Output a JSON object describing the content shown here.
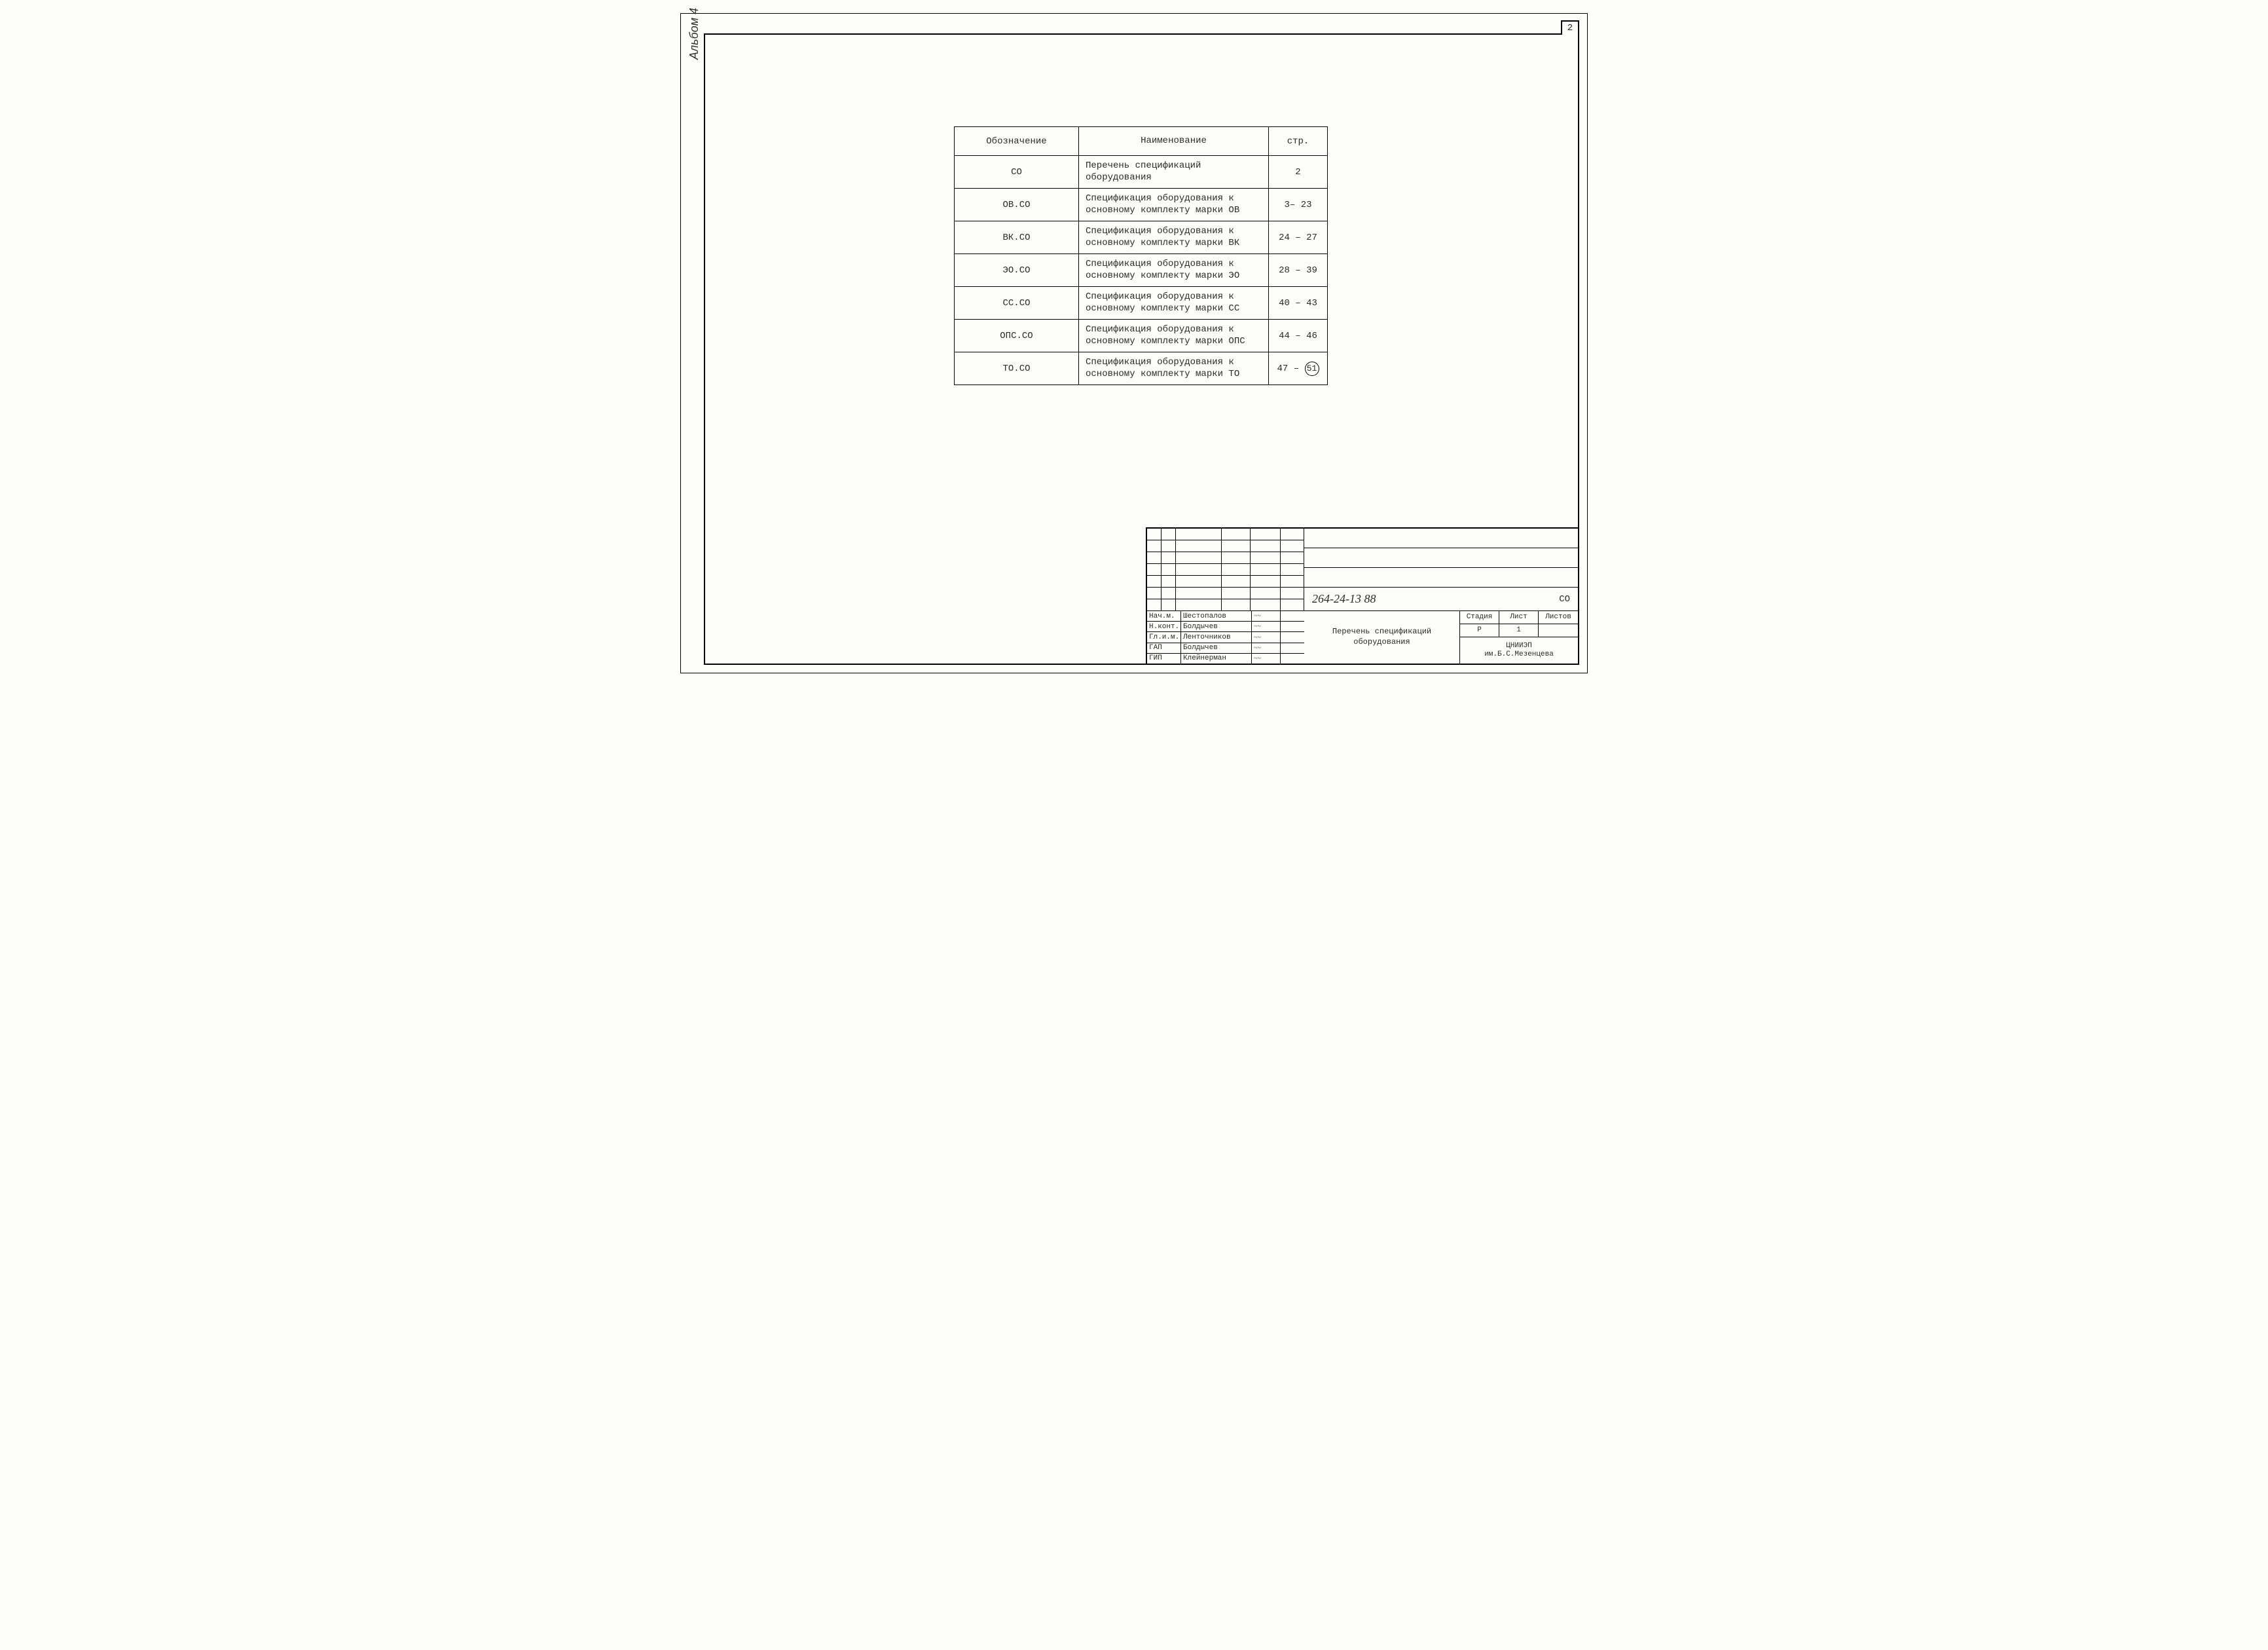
{
  "page_number": "2",
  "side_label": "Альбом 4",
  "main_table": {
    "headers": {
      "designation": "Обозначение",
      "name": "Наименование",
      "page": "стр."
    },
    "rows": [
      {
        "des": "СО",
        "name": "Перечень спецификаций оборудования",
        "page": "2"
      },
      {
        "des": "ОВ.СО",
        "name": "Спецификация оборудования к основному комплекту марки ОВ",
        "page": "3– 23"
      },
      {
        "des": "ВК.СО",
        "name": "Спецификация оборудования к основному комплекту марки ВК",
        "page": "24 – 27"
      },
      {
        "des": "ЭО.СО",
        "name": "Спецификация оборудования к основному комплекту марки ЭО",
        "page": "28 – 39"
      },
      {
        "des": "СС.СО",
        "name": "Спецификация оборудования к основному комплекту марки СС",
        "page": "40 – 43"
      },
      {
        "des": "ОПС.СО",
        "name": "Спецификация оборудования к основному комплекту марки ОПС",
        "page": "44 – 46"
      },
      {
        "des": "ТО.СО",
        "name": "Спецификация оборудования к основному комплекту марки ТО",
        "page_prefix": "47 –",
        "page_circled": "51"
      }
    ]
  },
  "title_block": {
    "doc_number": "264-24-13 88",
    "doc_code": "СО",
    "title": "Перечень спецификаций оборудования",
    "signatures": [
      {
        "role": "Нач.м.",
        "name": "Шестопалов"
      },
      {
        "role": "Н.конт.",
        "name": "Болдычев"
      },
      {
        "role": "Гл.и.м.",
        "name": "Ленточников"
      },
      {
        "role": "ГАП",
        "name": "Болдычев"
      },
      {
        "role": "ГИП",
        "name": "Клейнерман"
      }
    ],
    "stage_headers": {
      "stage": "Стадия",
      "sheet": "Лист",
      "sheets": "Листов"
    },
    "stage_values": {
      "stage": "Р",
      "sheet": "1",
      "sheets": ""
    },
    "organization": "ЦНИИЭП\nим.Б.С.Мезенцева"
  }
}
